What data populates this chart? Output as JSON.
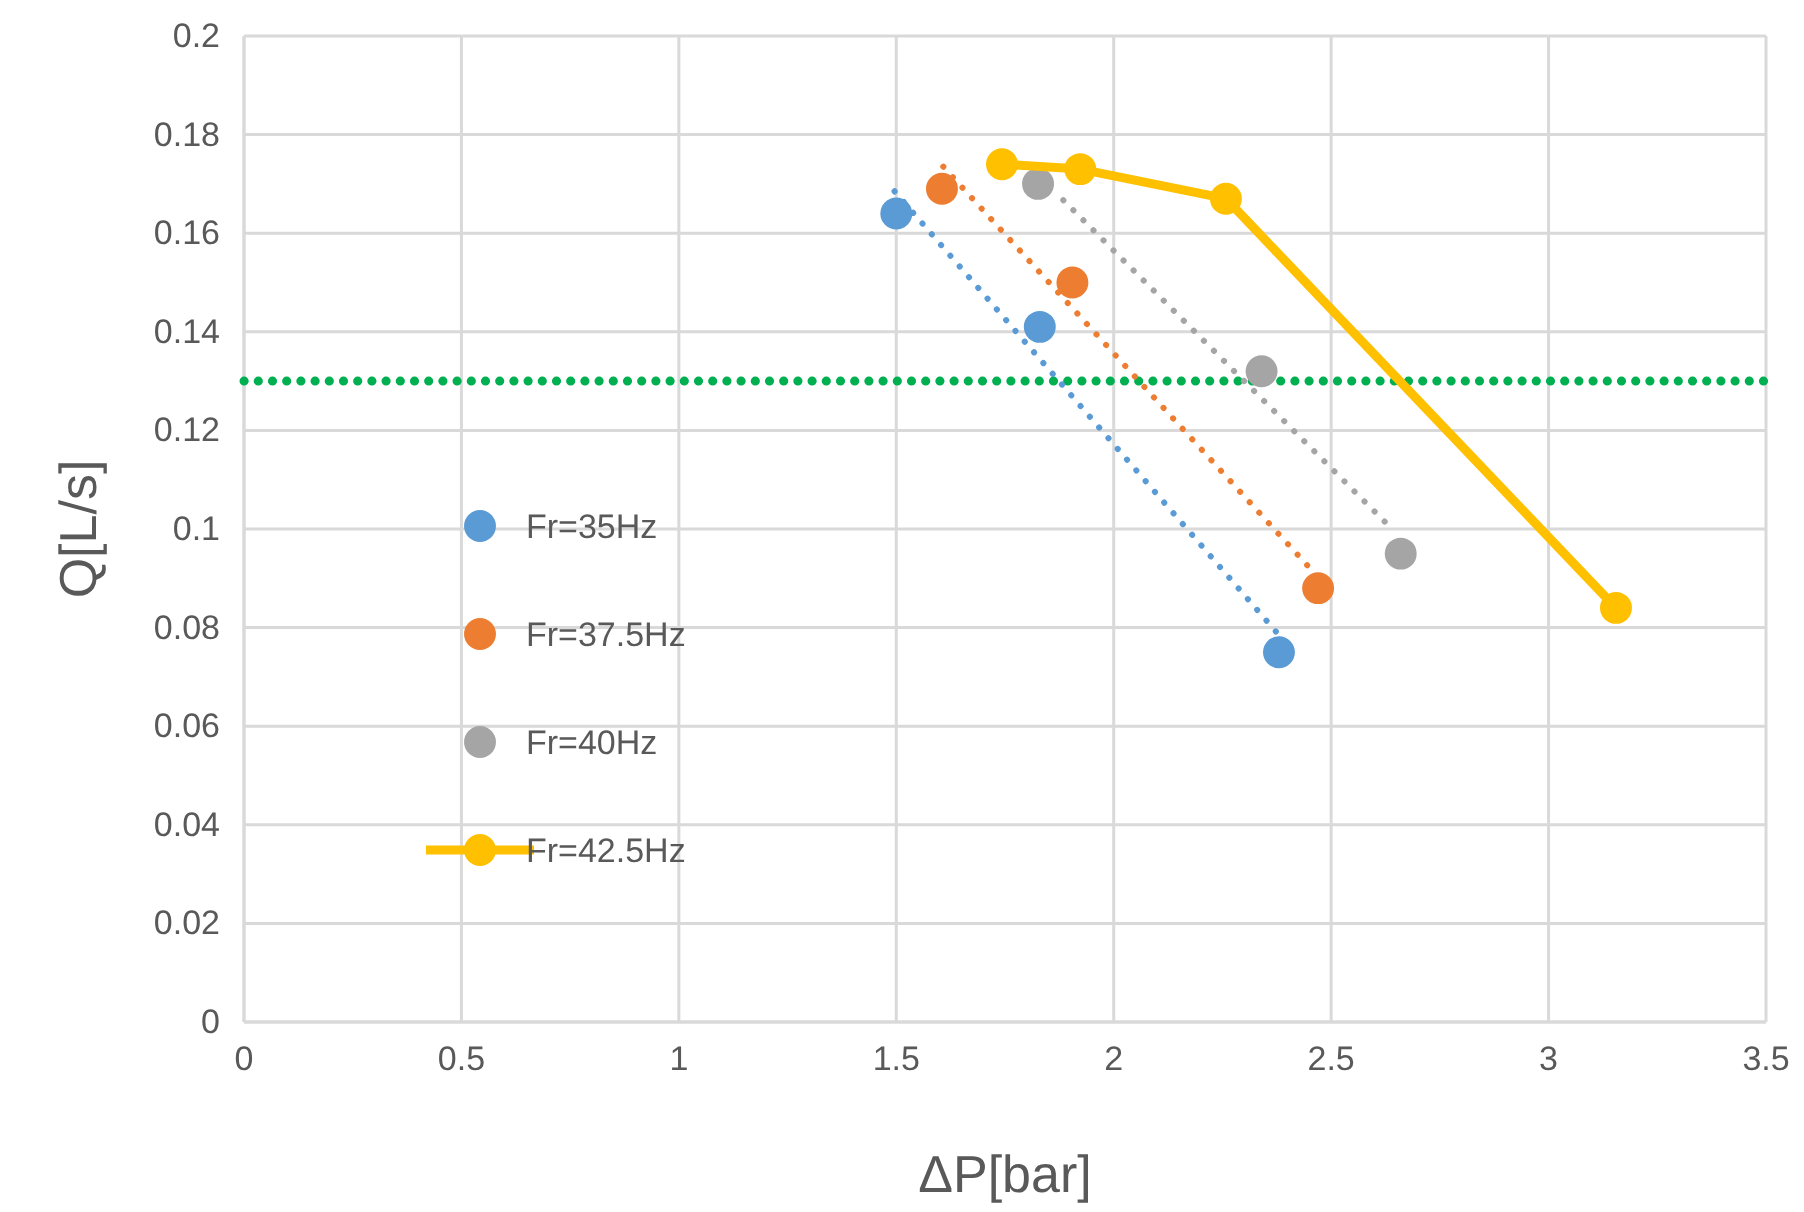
{
  "chart_data": {
    "type": "scatter",
    "xlabel": "ΔP[bar]",
    "ylabel": "Q[L/s]",
    "xlim": [
      0,
      3.5
    ],
    "xticks": [
      0,
      0.5,
      1,
      1.5,
      2,
      2.5,
      3,
      3.5
    ],
    "ylim": [
      0,
      0.2
    ],
    "yticks": [
      0,
      0.02,
      0.04,
      0.06,
      0.08,
      0.1,
      0.12,
      0.14,
      0.16,
      0.18,
      0.2
    ],
    "grid": true,
    "legend": "left",
    "marker": "circle",
    "series": [
      {
        "name": "Fr=35Hz",
        "color": "#5b9bd5",
        "x": [
          1.5,
          1.83,
          2.38
        ],
        "values": [
          0.164,
          0.141,
          0.075
        ]
      },
      {
        "name": "Fr=37.5Hz",
        "color": "#ed7d31",
        "x": [
          1.605,
          1.905,
          2.47
        ],
        "values": [
          0.169,
          0.15,
          0.088
        ]
      },
      {
        "name": "Fr=40Hz",
        "color": "#a5a5a5",
        "x": [
          1.826,
          2.34,
          2.66
        ],
        "values": [
          0.17,
          0.132,
          0.095
        ]
      },
      {
        "name": "Fr=42.5Hz",
        "type": "line",
        "color": "#ffc000",
        "x": [
          1.743,
          1.923,
          2.258,
          3.155
        ],
        "values": [
          0.174,
          0.173,
          0.167,
          0.084
        ]
      },
      {
        "type": "line",
        "marker": "none",
        "line_style": "dotted",
        "color": "#5b9bd5",
        "x": [
          1.496,
          2.375
        ],
        "values": [
          0.1685,
          0.079
        ]
      },
      {
        "type": "line",
        "marker": "none",
        "line_style": "dotted",
        "color": "#ed7d31",
        "x": [
          1.608,
          2.462
        ],
        "values": [
          0.1735,
          0.091
        ]
      },
      {
        "type": "line",
        "marker": "none",
        "line_style": "dotted",
        "color": "#a5a5a5",
        "x": [
          1.884,
          2.64
        ],
        "values": [
          0.1667,
          0.1
        ]
      }
    ],
    "ref_lines": [
      {
        "axis": "y",
        "value": 0.13,
        "color": "#00b050",
        "line_style": "dotted"
      }
    ]
  }
}
